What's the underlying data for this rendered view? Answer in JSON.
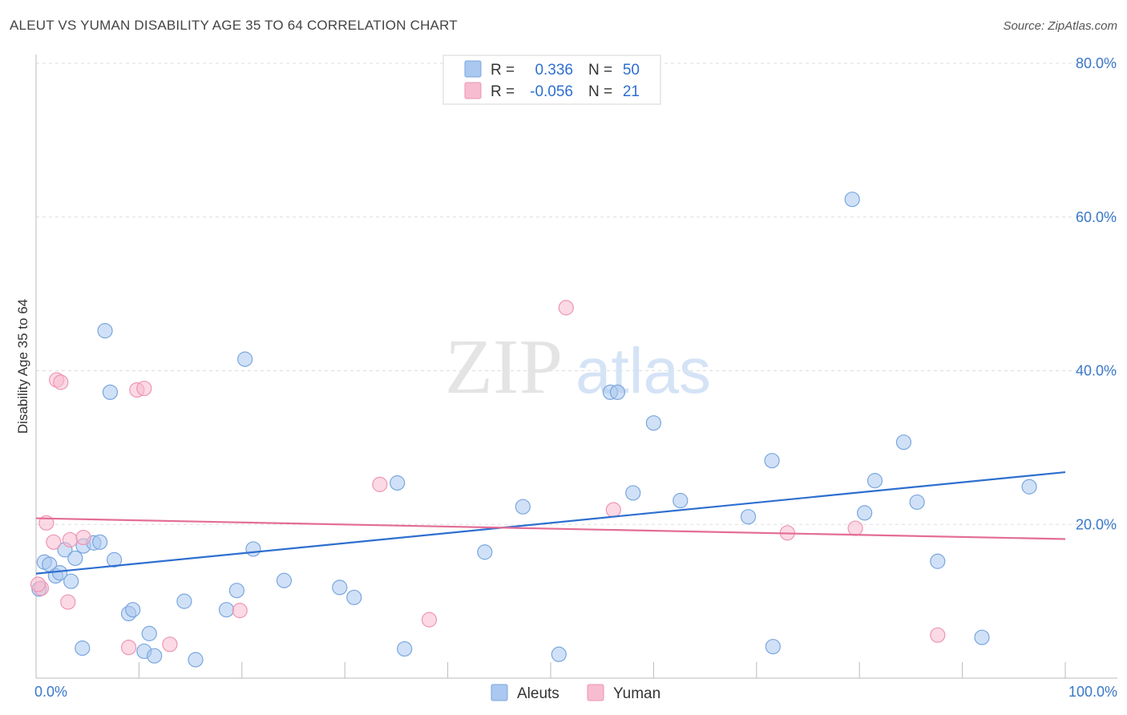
{
  "header": {
    "title": "ALEUT VS YUMAN DISABILITY AGE 35 TO 64 CORRELATION CHART",
    "source": "Source: ZipAtlas.com"
  },
  "watermark": {
    "zip": "ZIP",
    "atlas": "atlas"
  },
  "colors": {
    "blue_fill": "#aac8f0",
    "blue_stroke": "#7aa6de",
    "blue_line": "#2e6fcf",
    "pink_fill": "#f7bcd0",
    "pink_stroke": "#ee95b3",
    "pink_line": "#e36d97",
    "grid": "#dddddd",
    "tick_text": "#3a78c9"
  },
  "legend": {
    "rows": [
      {
        "r_label": "R =",
        "r_value": "0.336",
        "n_label": "N =",
        "n_value": "50"
      },
      {
        "r_label": "R =",
        "r_value": "-0.056",
        "n_label": "N =",
        "n_value": "21"
      }
    ]
  },
  "chart_data": {
    "type": "scatter",
    "title": "ALEUT VS YUMAN DISABILITY AGE 35 TO 64 CORRELATION CHART",
    "xlabel": "",
    "ylabel": "Disability Age 35 to 64",
    "xlim": [
      0,
      100
    ],
    "ylim": [
      0,
      80
    ],
    "x_tick_labels": [
      "0.0%",
      "100.0%"
    ],
    "y_ticks": [
      20,
      40,
      60,
      80
    ],
    "y_tick_labels": [
      "20.0%",
      "40.0%",
      "60.0%",
      "80.0%"
    ],
    "series": [
      {
        "name": "Aleuts",
        "color": "#aac8f0",
        "r": 0.336,
        "n": 50,
        "trend": {
          "x": [
            0,
            100
          ],
          "y": [
            13.6,
            26.8
          ]
        },
        "points": [
          [
            0.3,
            11.6
          ],
          [
            0.8,
            15.1
          ],
          [
            1.3,
            14.8
          ],
          [
            1.9,
            13.3
          ],
          [
            2.3,
            13.7
          ],
          [
            2.8,
            16.7
          ],
          [
            3.4,
            12.6
          ],
          [
            3.8,
            15.6
          ],
          [
            4.5,
            3.9
          ],
          [
            4.6,
            17.2
          ],
          [
            5.6,
            17.6
          ],
          [
            6.2,
            17.7
          ],
          [
            6.7,
            45.2
          ],
          [
            7.2,
            37.2
          ],
          [
            7.6,
            15.4
          ],
          [
            9.0,
            8.4
          ],
          [
            9.4,
            8.9
          ],
          [
            10.5,
            3.5
          ],
          [
            11.0,
            5.8
          ],
          [
            11.5,
            2.9
          ],
          [
            14.4,
            10.0
          ],
          [
            15.5,
            2.4
          ],
          [
            18.5,
            8.9
          ],
          [
            19.5,
            11.4
          ],
          [
            20.3,
            41.5
          ],
          [
            21.1,
            16.8
          ],
          [
            24.1,
            12.7
          ],
          [
            29.5,
            11.8
          ],
          [
            30.9,
            10.5
          ],
          [
            35.1,
            25.4
          ],
          [
            35.8,
            3.8
          ],
          [
            43.6,
            16.4
          ],
          [
            47.3,
            22.3
          ],
          [
            50.8,
            3.1
          ],
          [
            55.8,
            37.2
          ],
          [
            56.5,
            37.2
          ],
          [
            58.0,
            24.1
          ],
          [
            60.0,
            33.2
          ],
          [
            62.6,
            23.1
          ],
          [
            69.2,
            21.0
          ],
          [
            71.5,
            28.3
          ],
          [
            71.6,
            4.1
          ],
          [
            79.3,
            62.3
          ],
          [
            80.5,
            21.5
          ],
          [
            81.5,
            25.7
          ],
          [
            84.3,
            30.7
          ],
          [
            85.6,
            22.9
          ],
          [
            87.6,
            15.2
          ],
          [
            91.9,
            5.3
          ],
          [
            96.5,
            24.9
          ]
        ]
      },
      {
        "name": "Yuman",
        "color": "#f7bcd0",
        "r": -0.056,
        "n": 21,
        "trend": {
          "x": [
            0,
            100
          ],
          "y": [
            20.8,
            18.1
          ]
        },
        "points": [
          [
            0.5,
            11.7
          ],
          [
            1.0,
            20.2
          ],
          [
            1.7,
            17.7
          ],
          [
            2.0,
            38.8
          ],
          [
            2.4,
            38.5
          ],
          [
            3.1,
            9.9
          ],
          [
            3.3,
            18.0
          ],
          [
            4.6,
            18.3
          ],
          [
            9.0,
            4.0
          ],
          [
            9.8,
            37.5
          ],
          [
            10.5,
            37.7
          ],
          [
            13.0,
            4.4
          ],
          [
            19.8,
            8.8
          ],
          [
            33.4,
            25.2
          ],
          [
            38.2,
            7.6
          ],
          [
            51.5,
            48.2
          ],
          [
            56.1,
            21.9
          ],
          [
            73.0,
            18.9
          ],
          [
            79.6,
            19.5
          ],
          [
            87.6,
            5.6
          ],
          [
            0.2,
            12.2
          ]
        ]
      }
    ],
    "legend_entries": [
      "Aleuts",
      "Yuman"
    ]
  }
}
